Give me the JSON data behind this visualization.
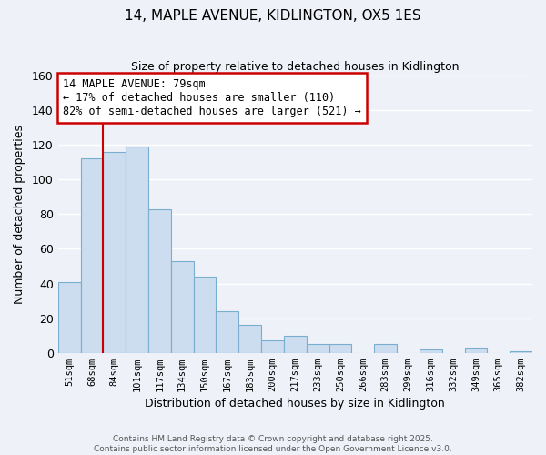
{
  "title": "14, MAPLE AVENUE, KIDLINGTON, OX5 1ES",
  "subtitle": "Size of property relative to detached houses in Kidlington",
  "xlabel": "Distribution of detached houses by size in Kidlington",
  "ylabel": "Number of detached properties",
  "categories": [
    "51sqm",
    "68sqm",
    "84sqm",
    "101sqm",
    "117sqm",
    "134sqm",
    "150sqm",
    "167sqm",
    "183sqm",
    "200sqm",
    "217sqm",
    "233sqm",
    "250sqm",
    "266sqm",
    "283sqm",
    "299sqm",
    "316sqm",
    "332sqm",
    "349sqm",
    "365sqm",
    "382sqm"
  ],
  "values": [
    41,
    112,
    116,
    119,
    83,
    53,
    44,
    24,
    16,
    7,
    10,
    5,
    5,
    0,
    5,
    0,
    2,
    0,
    3,
    0,
    1
  ],
  "bar_color": "#ccddef",
  "bar_edge_color": "#7aaece",
  "vline_color": "#cc0000",
  "annotation_title": "14 MAPLE AVENUE: 79sqm",
  "annotation_line1": "← 17% of detached houses are smaller (110)",
  "annotation_line2": "82% of semi-detached houses are larger (521) →",
  "annotation_box_color": "#ffffff",
  "annotation_box_edge": "#cc0000",
  "ylim": [
    0,
    160
  ],
  "yticks": [
    0,
    20,
    40,
    60,
    80,
    100,
    120,
    140,
    160
  ],
  "footer1": "Contains HM Land Registry data © Crown copyright and database right 2025.",
  "footer2": "Contains public sector information licensed under the Open Government Licence v3.0.",
  "background_color": "#eef2f8",
  "grid_color": "#ffffff",
  "title_fontsize": 11,
  "subtitle_fontsize": 9
}
